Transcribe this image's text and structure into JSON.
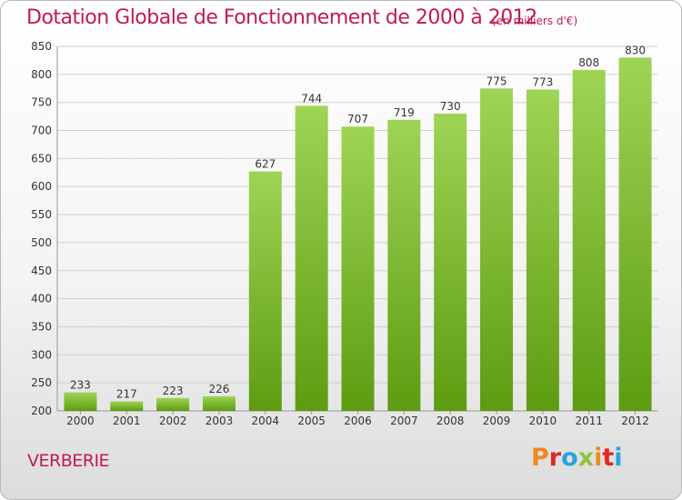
{
  "header": {
    "title": "Dotation Globale de Fonctionnement de 2000 à 2012",
    "subtitle": "(en milliers d'€)"
  },
  "footer": {
    "commune": "VERBERIE",
    "brand": "Proxiti",
    "brand_colors": [
      "#f08a1c",
      "#e5261f",
      "#2aa3dc",
      "#8cc63f",
      "#f08a1c",
      "#e5261f",
      "#2aa3dc"
    ]
  },
  "colors": {
    "title": "#c2185b",
    "bar_top": "#9fd455",
    "bar_bottom": "#5d9c11",
    "grid": "#d0d0d0",
    "axis_text": "#333333"
  },
  "chart_data": {
    "type": "bar",
    "categories": [
      "2000",
      "2001",
      "2002",
      "2003",
      "2004",
      "2005",
      "2006",
      "2007",
      "2008",
      "2009",
      "2010",
      "2011",
      "2012"
    ],
    "values": [
      233,
      217,
      223,
      226,
      627,
      744,
      707,
      719,
      730,
      775,
      773,
      808,
      830
    ],
    "title": "Dotation Globale de Fonctionnement de 2000 à 2012",
    "subtitle": "(en milliers d'€)",
    "ylim": [
      200,
      850
    ],
    "yticks": [
      200,
      250,
      300,
      350,
      400,
      450,
      500,
      550,
      600,
      650,
      700,
      750,
      800,
      850
    ],
    "grid": true,
    "data_labels": true
  }
}
